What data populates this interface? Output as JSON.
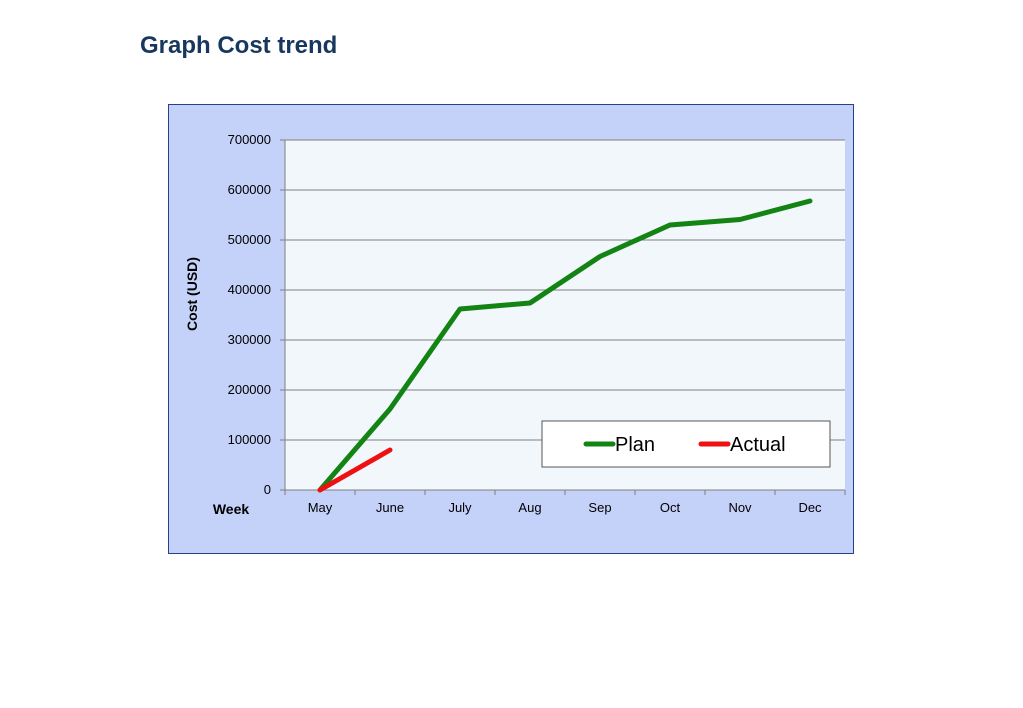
{
  "page": {
    "title": "Graph Cost trend"
  },
  "chart_data": {
    "type": "line",
    "title": "",
    "xlabel": "Week",
    "ylabel": "Cost (USD)",
    "categories": [
      "May",
      "June",
      "July",
      "Aug",
      "Sep",
      "Oct",
      "Nov",
      "Dec"
    ],
    "ylim": [
      0,
      700000
    ],
    "yticks": [
      "0",
      "100000",
      "200000",
      "300000",
      "400000",
      "500000",
      "600000",
      "700000"
    ],
    "grid": true,
    "legend_position": "bottom-right",
    "series": [
      {
        "name": "Plan",
        "color": "#138413",
        "values": [
          0,
          162000,
          362000,
          374000,
          467000,
          530000,
          541000,
          578000
        ]
      },
      {
        "name": "Actual",
        "color": "#ee1111",
        "values": [
          0,
          80000,
          null,
          null,
          null,
          null,
          null,
          null
        ]
      }
    ],
    "colors": {
      "frame_background": "#c4d1f8",
      "frame_border": "#28408a",
      "plot_background": "#f2f7fb",
      "gridline": "#808080"
    }
  }
}
